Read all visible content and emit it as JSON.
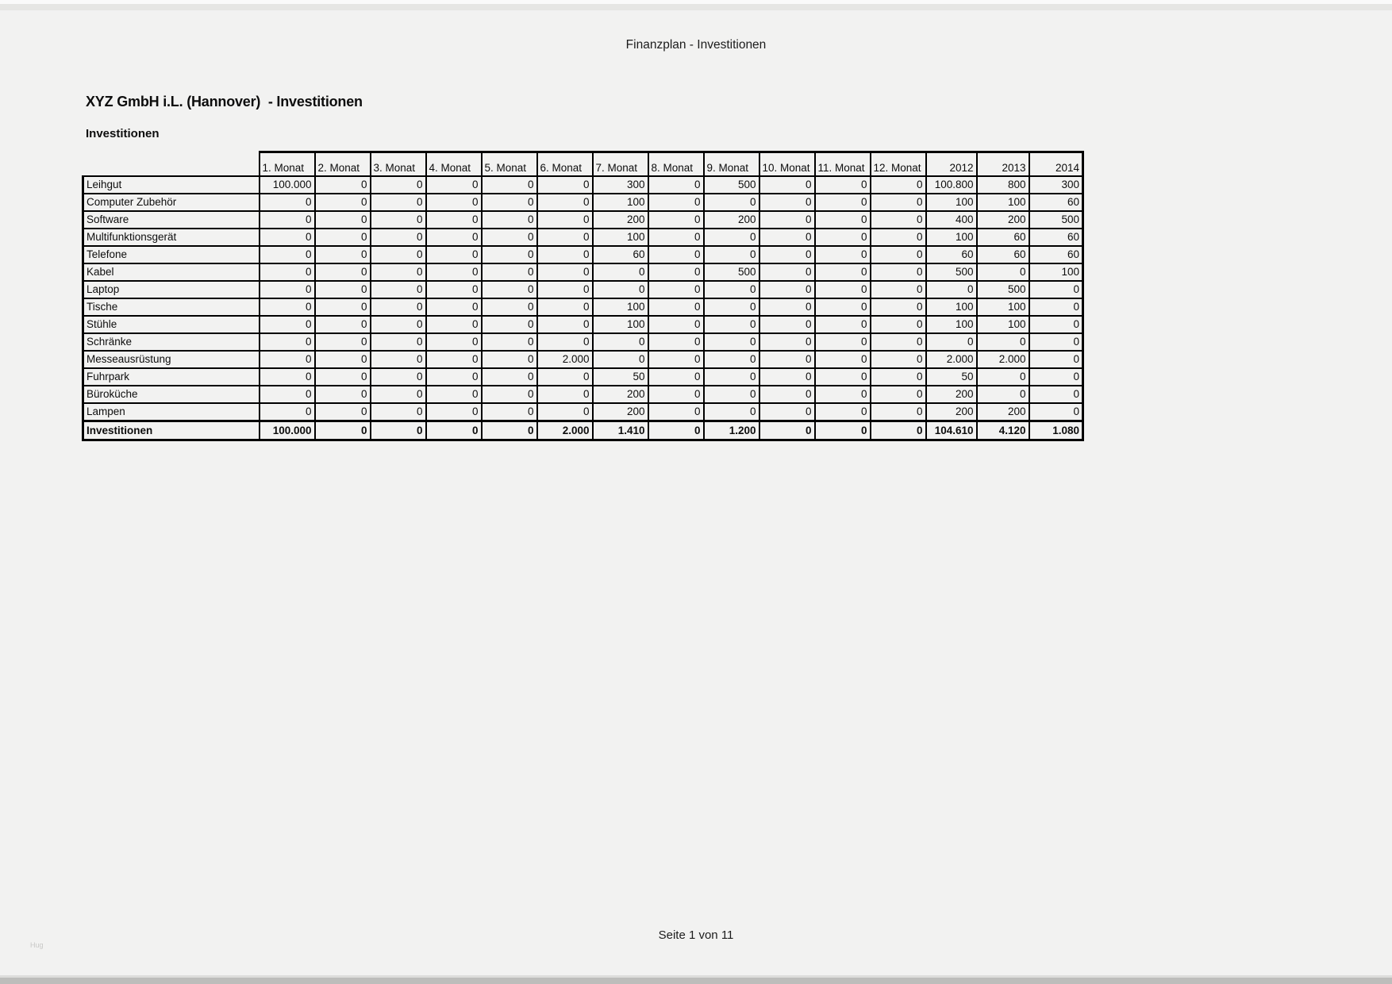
{
  "page": {
    "header": "Finanzplan - Investitionen",
    "title": "XYZ GmbH i.L. (Hannover)  - Investitionen",
    "section_title": "Investitionen",
    "footer": "Seite 1 von 11",
    "watermark": "Hug"
  },
  "colors": {
    "page_bg": "#f2f2f1",
    "table_border": "#000000",
    "text": "#0d0d0d",
    "watermark": "#c8c8c6",
    "bottom_edge": "#bdbdbb"
  },
  "table": {
    "columns": [
      "1. Monat",
      "2. Monat",
      "3. Monat",
      "4. Monat",
      "5. Monat",
      "6. Monat",
      "7. Monat",
      "8. Monat",
      "9. Monat",
      "10. Monat",
      "11. Monat",
      "12. Monat",
      "2012",
      "2013",
      "2014"
    ],
    "rows": [
      {
        "label": "Leihgut",
        "values": [
          "100.000",
          "0",
          "0",
          "0",
          "0",
          "0",
          "300",
          "0",
          "500",
          "0",
          "0",
          "0",
          "100.800",
          "800",
          "300"
        ]
      },
      {
        "label": "Computer Zubehör",
        "values": [
          "0",
          "0",
          "0",
          "0",
          "0",
          "0",
          "100",
          "0",
          "0",
          "0",
          "0",
          "0",
          "100",
          "100",
          "60"
        ]
      },
      {
        "label": "Software",
        "values": [
          "0",
          "0",
          "0",
          "0",
          "0",
          "0",
          "200",
          "0",
          "200",
          "0",
          "0",
          "0",
          "400",
          "200",
          "500"
        ]
      },
      {
        "label": "Multifunktionsgerät",
        "values": [
          "0",
          "0",
          "0",
          "0",
          "0",
          "0",
          "100",
          "0",
          "0",
          "0",
          "0",
          "0",
          "100",
          "60",
          "60"
        ]
      },
      {
        "label": "Telefone",
        "values": [
          "0",
          "0",
          "0",
          "0",
          "0",
          "0",
          "60",
          "0",
          "0",
          "0",
          "0",
          "0",
          "60",
          "60",
          "60"
        ]
      },
      {
        "label": "Kabel",
        "values": [
          "0",
          "0",
          "0",
          "0",
          "0",
          "0",
          "0",
          "0",
          "500",
          "0",
          "0",
          "0",
          "500",
          "0",
          "100"
        ]
      },
      {
        "label": "Laptop",
        "values": [
          "0",
          "0",
          "0",
          "0",
          "0",
          "0",
          "0",
          "0",
          "0",
          "0",
          "0",
          "0",
          "0",
          "500",
          "0"
        ]
      },
      {
        "label": "Tische",
        "values": [
          "0",
          "0",
          "0",
          "0",
          "0",
          "0",
          "100",
          "0",
          "0",
          "0",
          "0",
          "0",
          "100",
          "100",
          "0"
        ]
      },
      {
        "label": "Stühle",
        "values": [
          "0",
          "0",
          "0",
          "0",
          "0",
          "0",
          "100",
          "0",
          "0",
          "0",
          "0",
          "0",
          "100",
          "100",
          "0"
        ]
      },
      {
        "label": "Schränke",
        "values": [
          "0",
          "0",
          "0",
          "0",
          "0",
          "0",
          "0",
          "0",
          "0",
          "0",
          "0",
          "0",
          "0",
          "0",
          "0"
        ]
      },
      {
        "label": "Messeausrüstung",
        "values": [
          "0",
          "0",
          "0",
          "0",
          "0",
          "2.000",
          "0",
          "0",
          "0",
          "0",
          "0",
          "0",
          "2.000",
          "2.000",
          "0"
        ]
      },
      {
        "label": "Fuhrpark",
        "values": [
          "0",
          "0",
          "0",
          "0",
          "0",
          "0",
          "50",
          "0",
          "0",
          "0",
          "0",
          "0",
          "50",
          "0",
          "0"
        ]
      },
      {
        "label": "Büroküche",
        "values": [
          "0",
          "0",
          "0",
          "0",
          "0",
          "0",
          "200",
          "0",
          "0",
          "0",
          "0",
          "0",
          "200",
          "0",
          "0"
        ]
      },
      {
        "label": "Lampen",
        "values": [
          "0",
          "0",
          "0",
          "0",
          "0",
          "0",
          "200",
          "0",
          "0",
          "0",
          "0",
          "0",
          "200",
          "200",
          "0"
        ]
      }
    ],
    "total_row": {
      "label": "Investitionen",
      "values": [
        "100.000",
        "0",
        "0",
        "0",
        "0",
        "2.000",
        "1.410",
        "0",
        "1.200",
        "0",
        "0",
        "0",
        "104.610",
        "4.120",
        "1.080"
      ]
    },
    "column_widths": {
      "label": 222,
      "month": 70,
      "year2012": 64,
      "year2013": 66,
      "year2014": 68
    }
  }
}
